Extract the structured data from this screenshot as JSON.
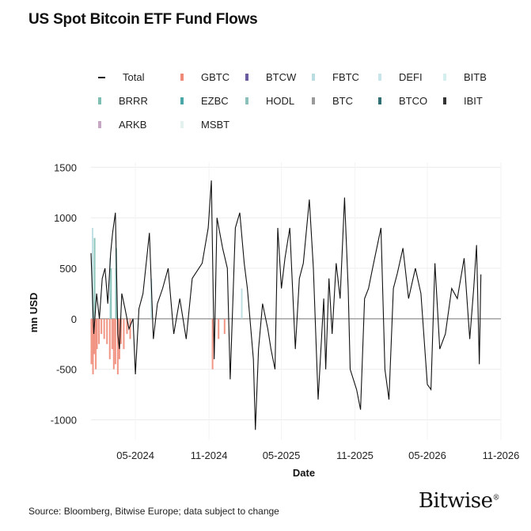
{
  "title": "US Spot Bitcoin ETF Fund Flows",
  "source": "Source: Bloomberg, Bitwise Europe; data subject to change",
  "logo": "Bitwise",
  "colors": {
    "total": "#111111",
    "GBTC": "#f08a78",
    "BTCW": "#6a5a9e",
    "FBTC": "#b9dde0",
    "DEFI": "#c8e6ea",
    "BITB": "#d5eeee",
    "BRRR": "#7fbfb3",
    "EZBC": "#4aa7a7",
    "HODL": "#8cc0bb",
    "BTC": "#9a9a9a",
    "BTCO": "#2f6f73",
    "IBIT": "#333333",
    "ARKB": "#c7a8c4",
    "MSBT": "#e3f1ef"
  },
  "chart_data": {
    "type": "bar",
    "title": "US Spot Bitcoin ETF Fund Flows",
    "xlabel": "Date",
    "ylabel": "mn USD",
    "ylim": [
      -1200,
      1550
    ],
    "yticks": [
      -1000,
      -500,
      0,
      500,
      1000,
      1500
    ],
    "xrange": [
      "2024-01-11",
      "2026-11-01"
    ],
    "xticks": [
      {
        "date": "2024-05-01",
        "label": "05-2024"
      },
      {
        "date": "2024-11-01",
        "label": "11-2024"
      },
      {
        "date": "2025-05-01",
        "label": "05-2025"
      },
      {
        "date": "2025-11-01",
        "label": "11-2025"
      },
      {
        "date": "2026-05-01",
        "label": "05-2026"
      },
      {
        "date": "2026-11-01",
        "label": "11-2026"
      }
    ],
    "grid": true,
    "legend_position": "top",
    "legend": [
      "Total",
      "GBTC",
      "BTCW",
      "FBTC",
      "DEFI",
      "BITB",
      "BRRR",
      "EZBC",
      "HODL",
      "BTC",
      "BTCO",
      "IBIT",
      "ARKB",
      "MSBT"
    ],
    "series": [
      {
        "name": "Total",
        "kind": "line",
        "points": [
          [
            "2024-01-11",
            650
          ],
          [
            "2024-01-18",
            -150
          ],
          [
            "2024-01-25",
            250
          ],
          [
            "2024-02-01",
            0
          ],
          [
            "2024-02-08",
            400
          ],
          [
            "2024-02-15",
            500
          ],
          [
            "2024-02-22",
            150
          ],
          [
            "2024-02-29",
            650
          ],
          [
            "2024-03-05",
            850
          ],
          [
            "2024-03-12",
            1050
          ],
          [
            "2024-03-18",
            -150
          ],
          [
            "2024-03-22",
            -300
          ],
          [
            "2024-03-28",
            250
          ],
          [
            "2024-04-05",
            100
          ],
          [
            "2024-04-15",
            -100
          ],
          [
            "2024-04-25",
            0
          ],
          [
            "2024-05-01",
            -550
          ],
          [
            "2024-05-10",
            100
          ],
          [
            "2024-05-20",
            250
          ],
          [
            "2024-06-05",
            850
          ],
          [
            "2024-06-15",
            -200
          ],
          [
            "2024-06-25",
            150
          ],
          [
            "2024-07-08",
            300
          ],
          [
            "2024-07-22",
            500
          ],
          [
            "2024-08-05",
            -150
          ],
          [
            "2024-08-20",
            200
          ],
          [
            "2024-09-05",
            -200
          ],
          [
            "2024-09-20",
            400
          ],
          [
            "2024-10-15",
            550
          ],
          [
            "2024-10-30",
            900
          ],
          [
            "2024-11-07",
            1370
          ],
          [
            "2024-11-14",
            -400
          ],
          [
            "2024-11-21",
            1000
          ],
          [
            "2024-12-05",
            700
          ],
          [
            "2024-12-17",
            500
          ],
          [
            "2024-12-24",
            -600
          ],
          [
            "2025-01-06",
            900
          ],
          [
            "2025-01-17",
            1050
          ],
          [
            "2025-01-28",
            550
          ],
          [
            "2025-02-05",
            300
          ],
          [
            "2025-02-20",
            -400
          ],
          [
            "2025-02-25",
            -1100
          ],
          [
            "2025-03-05",
            -300
          ],
          [
            "2025-03-15",
            150
          ],
          [
            "2025-03-28",
            -100
          ],
          [
            "2025-04-05",
            -300
          ],
          [
            "2025-04-15",
            -500
          ],
          [
            "2025-04-22",
            900
          ],
          [
            "2025-05-01",
            300
          ],
          [
            "2025-05-10",
            600
          ],
          [
            "2025-05-22",
            900
          ],
          [
            "2025-06-05",
            -300
          ],
          [
            "2025-06-15",
            400
          ],
          [
            "2025-06-25",
            550
          ],
          [
            "2025-07-10",
            1180
          ],
          [
            "2025-07-20",
            500
          ],
          [
            "2025-08-01",
            -800
          ],
          [
            "2025-08-15",
            200
          ],
          [
            "2025-08-20",
            -500
          ],
          [
            "2025-08-28",
            400
          ],
          [
            "2025-09-05",
            -150
          ],
          [
            "2025-09-15",
            550
          ],
          [
            "2025-09-25",
            200
          ],
          [
            "2025-10-06",
            1200
          ],
          [
            "2025-10-15",
            300
          ],
          [
            "2025-10-20",
            -500
          ],
          [
            "2025-11-05",
            -700
          ],
          [
            "2025-11-15",
            -900
          ],
          [
            "2025-11-25",
            200
          ],
          [
            "2025-12-05",
            300
          ],
          [
            "2025-12-15",
            500
          ],
          [
            "2026-01-05",
            900
          ],
          [
            "2026-01-15",
            -500
          ],
          [
            "2026-01-25",
            -800
          ],
          [
            "2026-02-05",
            300
          ],
          [
            "2026-02-15",
            450
          ],
          [
            "2026-03-01",
            700
          ],
          [
            "2026-03-15",
            200
          ],
          [
            "2026-04-01",
            500
          ],
          [
            "2026-04-15",
            250
          ],
          [
            "2026-05-01",
            -650
          ],
          [
            "2026-05-10",
            -700
          ],
          [
            "2026-05-20",
            550
          ],
          [
            "2026-06-01",
            -300
          ],
          [
            "2026-06-15",
            -150
          ],
          [
            "2026-07-01",
            300
          ],
          [
            "2026-07-15",
            200
          ],
          [
            "2026-08-01",
            600
          ],
          [
            "2026-08-15",
            -200
          ],
          [
            "2026-08-25",
            300
          ],
          [
            "2026-09-01",
            730
          ],
          [
            "2026-09-08",
            -450
          ],
          [
            "2026-09-12",
            440
          ]
        ]
      },
      {
        "name": "GBTC",
        "kind": "bar",
        "points": [
          [
            "2024-01-12",
            -450
          ],
          [
            "2024-01-16",
            -550
          ],
          [
            "2024-01-19",
            -350
          ],
          [
            "2024-01-23",
            -500
          ],
          [
            "2024-01-26",
            -300
          ],
          [
            "2024-01-31",
            -250
          ],
          [
            "2024-02-06",
            -150
          ],
          [
            "2024-02-13",
            -200
          ],
          [
            "2024-02-20",
            -250
          ],
          [
            "2024-02-27",
            -400
          ],
          [
            "2024-03-04",
            -300
          ],
          [
            "2024-03-08",
            -500
          ],
          [
            "2024-03-12",
            -450
          ],
          [
            "2024-03-18",
            -550
          ],
          [
            "2024-03-22",
            -400
          ],
          [
            "2024-03-26",
            -250
          ],
          [
            "2024-04-02",
            -300
          ],
          [
            "2024-04-10",
            -150
          ],
          [
            "2024-04-18",
            -200
          ],
          [
            "2024-11-10",
            -500
          ],
          [
            "2024-11-25",
            -200
          ],
          [
            "2024-12-10",
            -150
          ]
        ]
      },
      {
        "name": "FBTC",
        "kind": "bar",
        "points": [
          [
            "2024-01-15",
            900
          ],
          [
            "2024-02-28",
            600
          ],
          [
            "2024-03-13",
            500
          ],
          [
            "2024-06-10",
            400
          ],
          [
            "2025-01-22",
            300
          ]
        ]
      },
      {
        "name": "BRRR",
        "kind": "bar",
        "points": [
          [
            "2024-01-20",
            800
          ],
          [
            "2024-03-01",
            500
          ],
          [
            "2024-03-14",
            700
          ]
        ]
      },
      {
        "name": "IBIT",
        "kind": "bar",
        "points": []
      }
    ]
  }
}
